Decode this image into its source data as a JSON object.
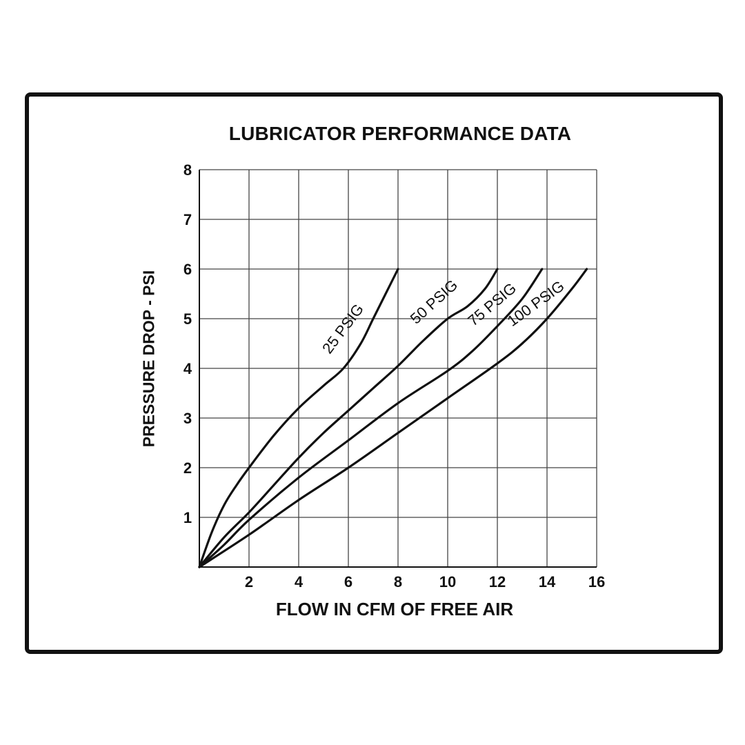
{
  "chart_data": {
    "type": "line",
    "title": "LUBRICATOR PERFORMANCE DATA",
    "xlabel": "FLOW IN CFM OF FREE AIR",
    "ylabel": "PRESSURE DROP - PSI",
    "xlim": [
      0,
      16
    ],
    "ylim": [
      0,
      8
    ],
    "x_ticks": [
      2,
      4,
      6,
      8,
      10,
      12,
      14,
      16
    ],
    "y_ticks": [
      1,
      2,
      3,
      4,
      5,
      6,
      7,
      8
    ],
    "grid": true,
    "line_color": "#111111",
    "series": [
      {
        "name": "25 PSIG",
        "x": [
          0,
          0.5,
          1,
          1.5,
          2,
          3,
          4,
          5,
          5.8,
          6.5,
          7,
          7.5,
          8
        ],
        "y": [
          0,
          0.7,
          1.25,
          1.65,
          2.0,
          2.65,
          3.2,
          3.65,
          4.0,
          4.5,
          5.0,
          5.5,
          6.0
        ]
      },
      {
        "name": "50 PSIG",
        "x": [
          0,
          1,
          2,
          3,
          4,
          5,
          6,
          7,
          8,
          9,
          10,
          10.8,
          11.5,
          12
        ],
        "y": [
          0,
          0.6,
          1.1,
          1.65,
          2.2,
          2.7,
          3.15,
          3.6,
          4.05,
          4.55,
          5.0,
          5.25,
          5.6,
          6.0
        ]
      },
      {
        "name": "75 PSIG",
        "x": [
          0,
          1,
          2,
          4,
          6,
          8,
          10,
          11,
          12,
          13,
          13.8
        ],
        "y": [
          0,
          0.45,
          0.95,
          1.8,
          2.55,
          3.3,
          3.95,
          4.35,
          4.85,
          5.4,
          6.0
        ]
      },
      {
        "name": "100 PSIG",
        "x": [
          0,
          2,
          4,
          6,
          8,
          10,
          12,
          13,
          14,
          15,
          15.6
        ],
        "y": [
          0,
          0.65,
          1.35,
          2.0,
          2.7,
          3.4,
          4.1,
          4.5,
          5.0,
          5.6,
          6.0
        ]
      }
    ]
  }
}
